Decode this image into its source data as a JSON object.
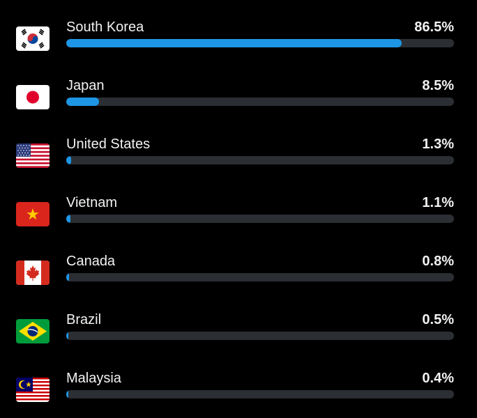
{
  "accent_color": "#1e96e6",
  "track_color": "#2b2e33",
  "countries": [
    {
      "name": "South Korea",
      "percent_label": "86.5%",
      "value": 86.5,
      "flag": "flag-south-korea-icon"
    },
    {
      "name": "Japan",
      "percent_label": "8.5%",
      "value": 8.5,
      "flag": "flag-japan-icon"
    },
    {
      "name": "United States",
      "percent_label": "1.3%",
      "value": 1.3,
      "flag": "flag-united-states-icon"
    },
    {
      "name": "Vietnam",
      "percent_label": "1.1%",
      "value": 1.1,
      "flag": "flag-vietnam-icon"
    },
    {
      "name": "Canada",
      "percent_label": "0.8%",
      "value": 0.8,
      "flag": "flag-canada-icon"
    },
    {
      "name": "Brazil",
      "percent_label": "0.5%",
      "value": 0.5,
      "flag": "flag-brazil-icon"
    },
    {
      "name": "Malaysia",
      "percent_label": "0.4%",
      "value": 0.4,
      "flag": "flag-malaysia-icon"
    }
  ]
}
